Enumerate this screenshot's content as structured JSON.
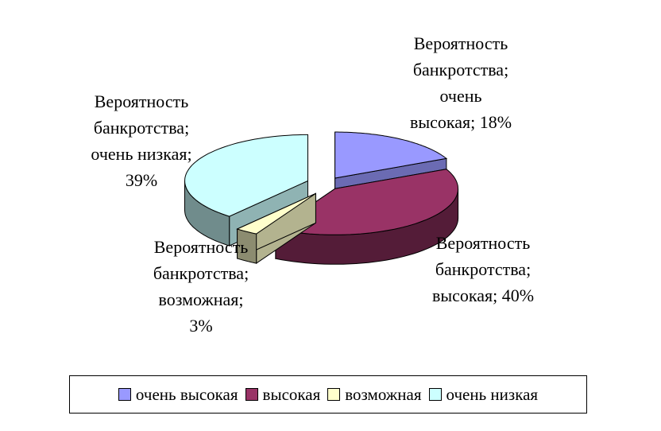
{
  "chart_data": {
    "type": "pie",
    "categories": [
      "очень высокая",
      "высокая",
      "возможная",
      "очень низкая"
    ],
    "values": [
      18,
      40,
      3,
      39
    ],
    "colors": [
      "#9999FF",
      "#993366",
      "#FFFFCC",
      "#CCFFFF"
    ],
    "data_labels": [
      {
        "lines": [
          "Вероятность",
          "банкротства;",
          "очень",
          "высокая; 18%"
        ]
      },
      {
        "lines": [
          "Вероятность",
          "банкротства;",
          "высокая; 40%"
        ]
      },
      {
        "lines": [
          "Вероятность",
          "банкротства;",
          "возможная;",
          "3%"
        ]
      },
      {
        "lines": [
          "Вероятность",
          "банкротства;",
          "очень низкая;",
          "39%"
        ]
      }
    ],
    "legend": {
      "placement": "bottom",
      "entries": [
        "очень высокая",
        "высокая",
        "возможная",
        "очень низкая"
      ]
    },
    "exploded": true,
    "three_d": true
  }
}
